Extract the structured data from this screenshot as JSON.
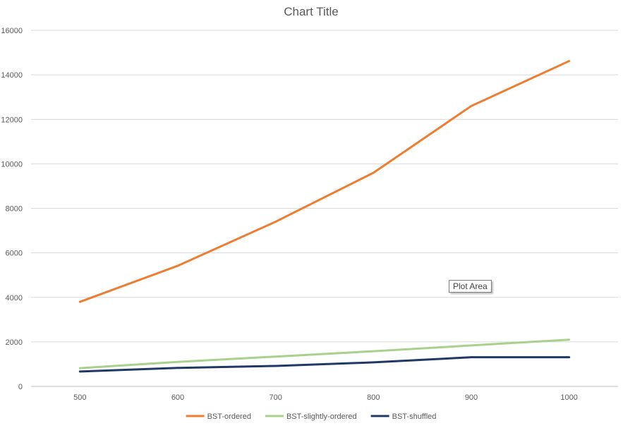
{
  "chart_data": {
    "type": "line",
    "title": "Chart Title",
    "xlabel": "",
    "ylabel": "",
    "categories": [
      "500",
      "600",
      "700",
      "800",
      "900",
      "1000"
    ],
    "ylim": [
      0,
      16000
    ],
    "yticks": [
      "0",
      "2000",
      "4000",
      "6000",
      "8000",
      "10000",
      "12000",
      "14000",
      "16000"
    ],
    "grid": true,
    "legend_position": "bottom",
    "series": [
      {
        "name": "BST-ordered",
        "color": "#ED7D31",
        "values": [
          3800,
          5420,
          7400,
          9600,
          12600,
          14620
        ]
      },
      {
        "name": "BST-slightly-ordered",
        "color": "#A9D18E",
        "values": [
          820,
          1100,
          1340,
          1580,
          1840,
          2100
        ]
      },
      {
        "name": "BST-shuffled",
        "color": "#203864",
        "values": [
          670,
          830,
          920,
          1080,
          1310,
          1310
        ]
      }
    ]
  },
  "tooltip": {
    "text": "Plot Area"
  }
}
